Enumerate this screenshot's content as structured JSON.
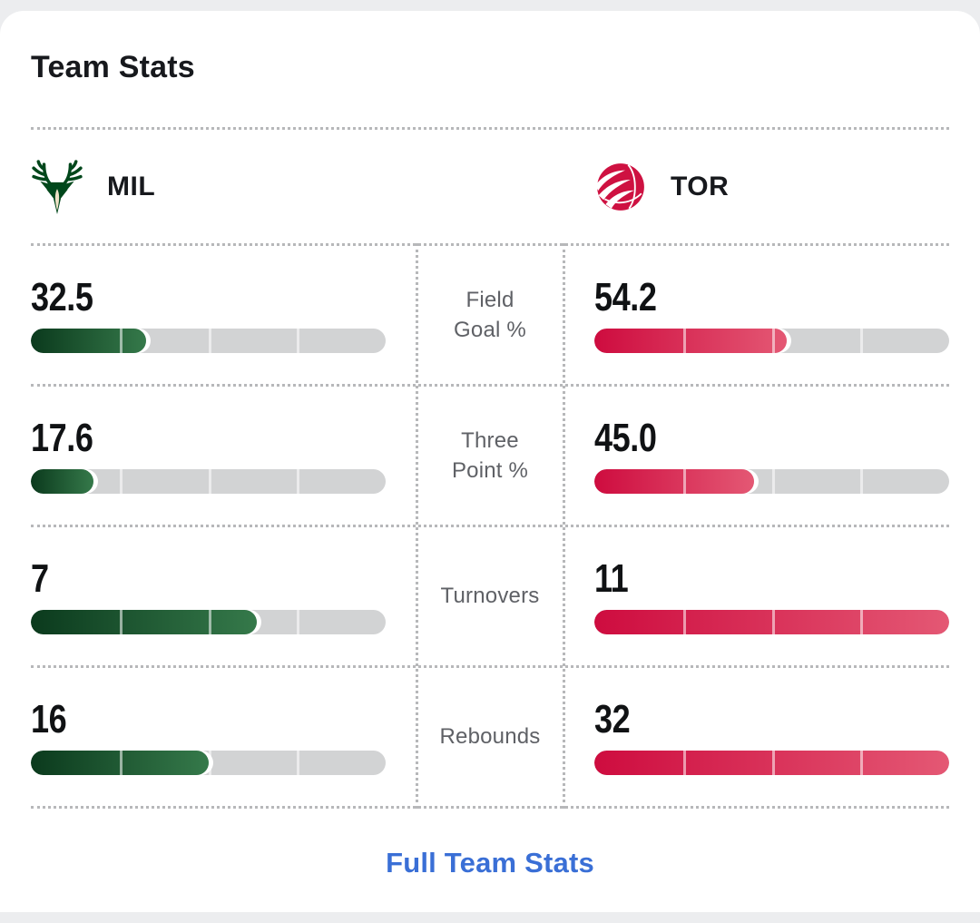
{
  "header": {
    "title": "Team Stats"
  },
  "teams": {
    "left": {
      "abbr": "MIL",
      "logo_icon": "bucks-logo",
      "bar_color_start": "#0b3a1d",
      "bar_color_end": "#35794a",
      "logo_green": "#00471B",
      "logo_cream": "#EEE1C6"
    },
    "right": {
      "abbr": "TOR",
      "logo_icon": "raptors-logo",
      "bar_color_start": "#ce0c3f",
      "bar_color_end": "#e45874",
      "logo_red": "#CE1141"
    }
  },
  "stats": [
    {
      "label": "Field Goal %",
      "label_lines": [
        "Field",
        "Goal %"
      ],
      "left_value": "32.5",
      "right_value": "54.2",
      "left_fill_pct": 32.5,
      "right_fill_pct": 54.2
    },
    {
      "label": "Three Point %",
      "label_lines": [
        "Three",
        "Point %"
      ],
      "left_value": "17.6",
      "right_value": "45.0",
      "left_fill_pct": 17.6,
      "right_fill_pct": 45.0
    },
    {
      "label": "Turnovers",
      "label_lines": [
        "Turnovers"
      ],
      "left_value": "7",
      "right_value": "11",
      "left_fill_pct": 63.6,
      "right_fill_pct": 100
    },
    {
      "label": "Rebounds",
      "label_lines": [
        "Rebounds"
      ],
      "left_value": "16",
      "right_value": "32",
      "left_fill_pct": 50,
      "right_fill_pct": 100
    }
  ],
  "bar": {
    "segments": 4,
    "track_color": "#d2d3d4"
  },
  "footer": {
    "link_label": "Full Team Stats",
    "link_color": "#3a6fd6"
  },
  "colors": {
    "page_bg": "#ecedef",
    "card_bg": "#ffffff",
    "title_text": "#17191d",
    "label_text": "#5f6166",
    "value_text": "#101214",
    "divider_dots": "#b7b8ba"
  }
}
